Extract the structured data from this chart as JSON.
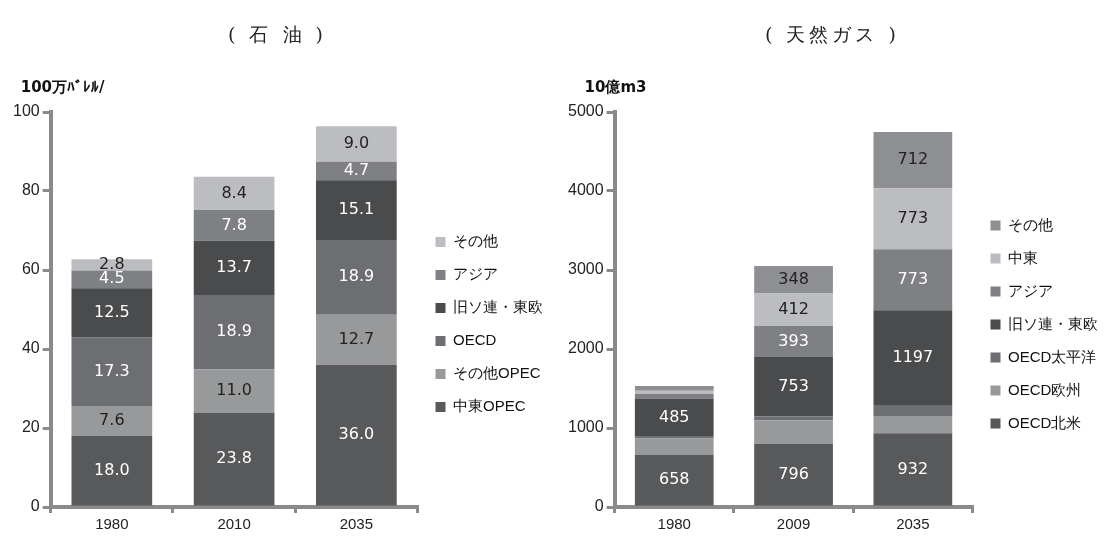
{
  "chart_data": [
    {
      "type": "bar",
      "title": "( 石 油 )",
      "ylabel": "100万ﾊﾞﾚﾙ/",
      "categories": [
        "1980",
        "2010",
        "2035"
      ],
      "stacked": true,
      "ylim": [
        0,
        100
      ],
      "yticks": [
        0,
        20,
        40,
        60,
        80,
        100
      ],
      "legend": "right",
      "series": [
        {
          "name": "中東OPEC",
          "color": "#58595b",
          "values": [
            18.0,
            23.8,
            36.0
          ],
          "value_labels": [
            "18.0",
            "23.8",
            "36.0"
          ]
        },
        {
          "name": "その他OPEC",
          "color": "#98999b",
          "values": [
            7.6,
            11.0,
            12.7
          ],
          "value_labels": [
            "7.6",
            "11.0",
            "12.7"
          ]
        },
        {
          "name": "OECD",
          "color": "#6d6e71",
          "values": [
            17.3,
            18.9,
            18.9
          ],
          "value_labels": [
            "17.3",
            "18.9",
            "18.9"
          ]
        },
        {
          "name": "旧ソ連・東欧",
          "color": "#4a4b4d",
          "values": [
            12.5,
            13.7,
            15.1
          ],
          "value_labels": [
            "12.5",
            "13.7",
            "15.1"
          ]
        },
        {
          "name": "アジア",
          "color": "#7f8083",
          "values": [
            4.5,
            7.8,
            4.7
          ],
          "value_labels": [
            "4.5",
            "7.8",
            "4.7"
          ]
        },
        {
          "name": "その他",
          "color": "#bcbdc0",
          "values": [
            2.8,
            8.4,
            9.0
          ],
          "value_labels": [
            "2.8",
            "8.4",
            "9.0"
          ]
        }
      ]
    },
    {
      "type": "bar",
      "title": "( 天然ガス )",
      "ylabel": "10億m3",
      "categories": [
        "1980",
        "2009",
        "2035"
      ],
      "stacked": true,
      "ylim": [
        0,
        5000
      ],
      "yticks": [
        0,
        1000,
        2000,
        3000,
        4000,
        5000
      ],
      "legend": "right",
      "series": [
        {
          "name": "OECD北米",
          "color": "#58595b",
          "values": [
            658,
            796,
            932
          ],
          "value_labels": [
            "658",
            "796",
            "932"
          ]
        },
        {
          "name": "OECD欧州",
          "color": "#98999b",
          "values": [
            210,
            300,
            220
          ],
          "value_labels": [
            null,
            null,
            null
          ]
        },
        {
          "name": "OECD太平洋",
          "color": "#6d6e71",
          "values": [
            20,
            50,
            140
          ],
          "value_labels": [
            null,
            null,
            null
          ]
        },
        {
          "name": "旧ソ連・東欧",
          "color": "#4a4b4d",
          "values": [
            485,
            753,
            1197
          ],
          "value_labels": [
            "485",
            "753",
            "1197"
          ]
        },
        {
          "name": "アジア",
          "color": "#7f8083",
          "values": [
            60,
            393,
            773
          ],
          "value_labels": [
            null,
            "393",
            "773"
          ]
        },
        {
          "name": "中東",
          "color": "#bcbdc0",
          "values": [
            40,
            412,
            773
          ],
          "value_labels": [
            null,
            "412",
            "773"
          ]
        },
        {
          "name": "その他",
          "color": "#8e8f92",
          "values": [
            60,
            348,
            712
          ],
          "value_labels": [
            null,
            "348",
            "712"
          ]
        }
      ]
    }
  ]
}
